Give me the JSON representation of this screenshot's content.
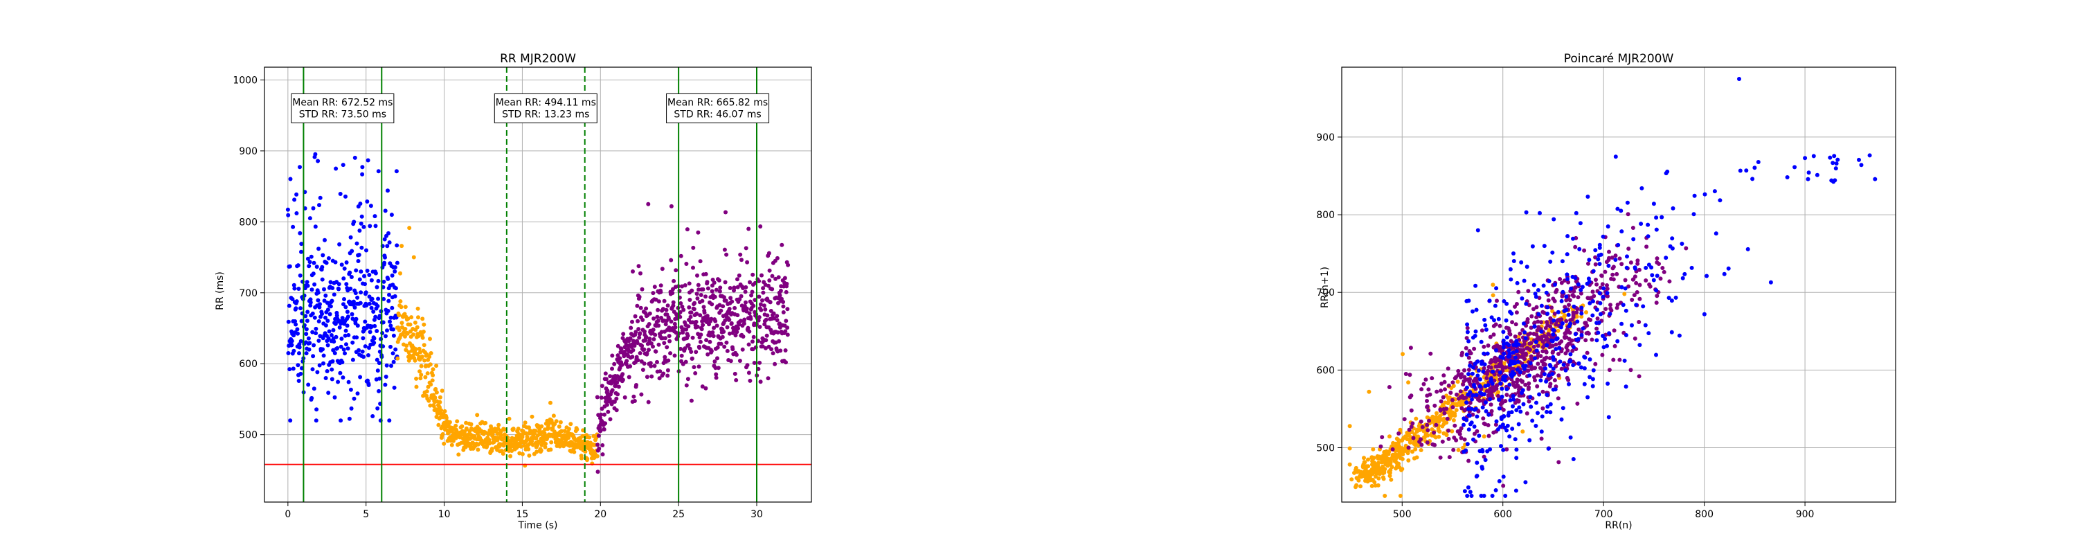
{
  "chart_data": [
    {
      "type": "scatter",
      "title": "RR MJR200W",
      "xlabel": "Time (s)",
      "ylabel": "RR (ms)",
      "xlim": [
        -1.5,
        33.5
      ],
      "ylim": [
        405,
        1018
      ],
      "x_ticks": [
        0,
        5,
        10,
        15,
        20,
        25,
        30
      ],
      "y_ticks": [
        500,
        600,
        700,
        800,
        900,
        1000
      ],
      "grid": true,
      "series": [
        {
          "color": "#0000ff",
          "x_range": [
            0.0,
            7.0
          ],
          "mean": 672.52,
          "std": 73.5,
          "min": 520,
          "max": 900
        },
        {
          "color": "#ffa500",
          "x_range": [
            7.0,
            19.8
          ],
          "profile_x": [
            7,
            7.8,
            8.6,
            9.3,
            9.8,
            10.5,
            12,
            14,
            16,
            18,
            19.8
          ],
          "profile_y": [
            655,
            640,
            610,
            570,
            520,
            500,
            498,
            492,
            497,
            494,
            480
          ]
        },
        {
          "color": "#800080",
          "x_range": [
            19.8,
            32.0
          ],
          "profile_x": [
            19.8,
            20.3,
            21,
            21.8,
            22.6,
            24,
            26,
            28,
            30,
            32
          ],
          "profile_y": [
            500,
            530,
            580,
            620,
            640,
            652,
            660,
            668,
            666,
            660
          ],
          "mean": 665.82,
          "std": 46.07
        }
      ],
      "vlines": [
        {
          "x": 1.0,
          "style": "solid",
          "color": "#008000"
        },
        {
          "x": 6.0,
          "style": "solid",
          "color": "#008000"
        },
        {
          "x": 14.0,
          "style": "dashed",
          "color": "#008000"
        },
        {
          "x": 19.0,
          "style": "dashed",
          "color": "#008000"
        },
        {
          "x": 25.0,
          "style": "solid",
          "color": "#008000"
        },
        {
          "x": 30.0,
          "style": "solid",
          "color": "#008000"
        }
      ],
      "hline": {
        "y": 458,
        "color": "#ff0000"
      },
      "annotations": [
        {
          "x": 3.5,
          "y": 960,
          "lines": [
            "Mean RR: 672.52 ms",
            "STD RR: 73.50 ms"
          ]
        },
        {
          "x": 16.5,
          "y": 960,
          "lines": [
            "Mean RR: 494.11 ms",
            "STD RR: 13.23 ms"
          ]
        },
        {
          "x": 27.5,
          "y": 960,
          "lines": [
            "Mean RR: 665.82 ms",
            "STD RR: 46.07 ms"
          ]
        }
      ]
    },
    {
      "type": "scatter",
      "title": "Poincaré MJR200W",
      "xlabel": "RR(n)",
      "ylabel": "RR(n+1)",
      "xlim": [
        440,
        990
      ],
      "ylim": [
        430,
        990
      ],
      "x_ticks": [
        500,
        600,
        700,
        800,
        900
      ],
      "y_ticks": [
        500,
        600,
        700,
        800,
        900
      ],
      "grid": true,
      "series": [
        {
          "color": "#0000ff",
          "cluster_center": [
            660,
            680
          ],
          "spread": 70,
          "points_min": [
            520,
            520
          ],
          "points_max": [
            970,
            970
          ]
        },
        {
          "color": "#ffa500",
          "cluster_center": [
            500,
            500
          ],
          "spread": 25
        },
        {
          "color": "#800080",
          "cluster_center": [
            650,
            655
          ],
          "spread": 45
        }
      ]
    }
  ]
}
